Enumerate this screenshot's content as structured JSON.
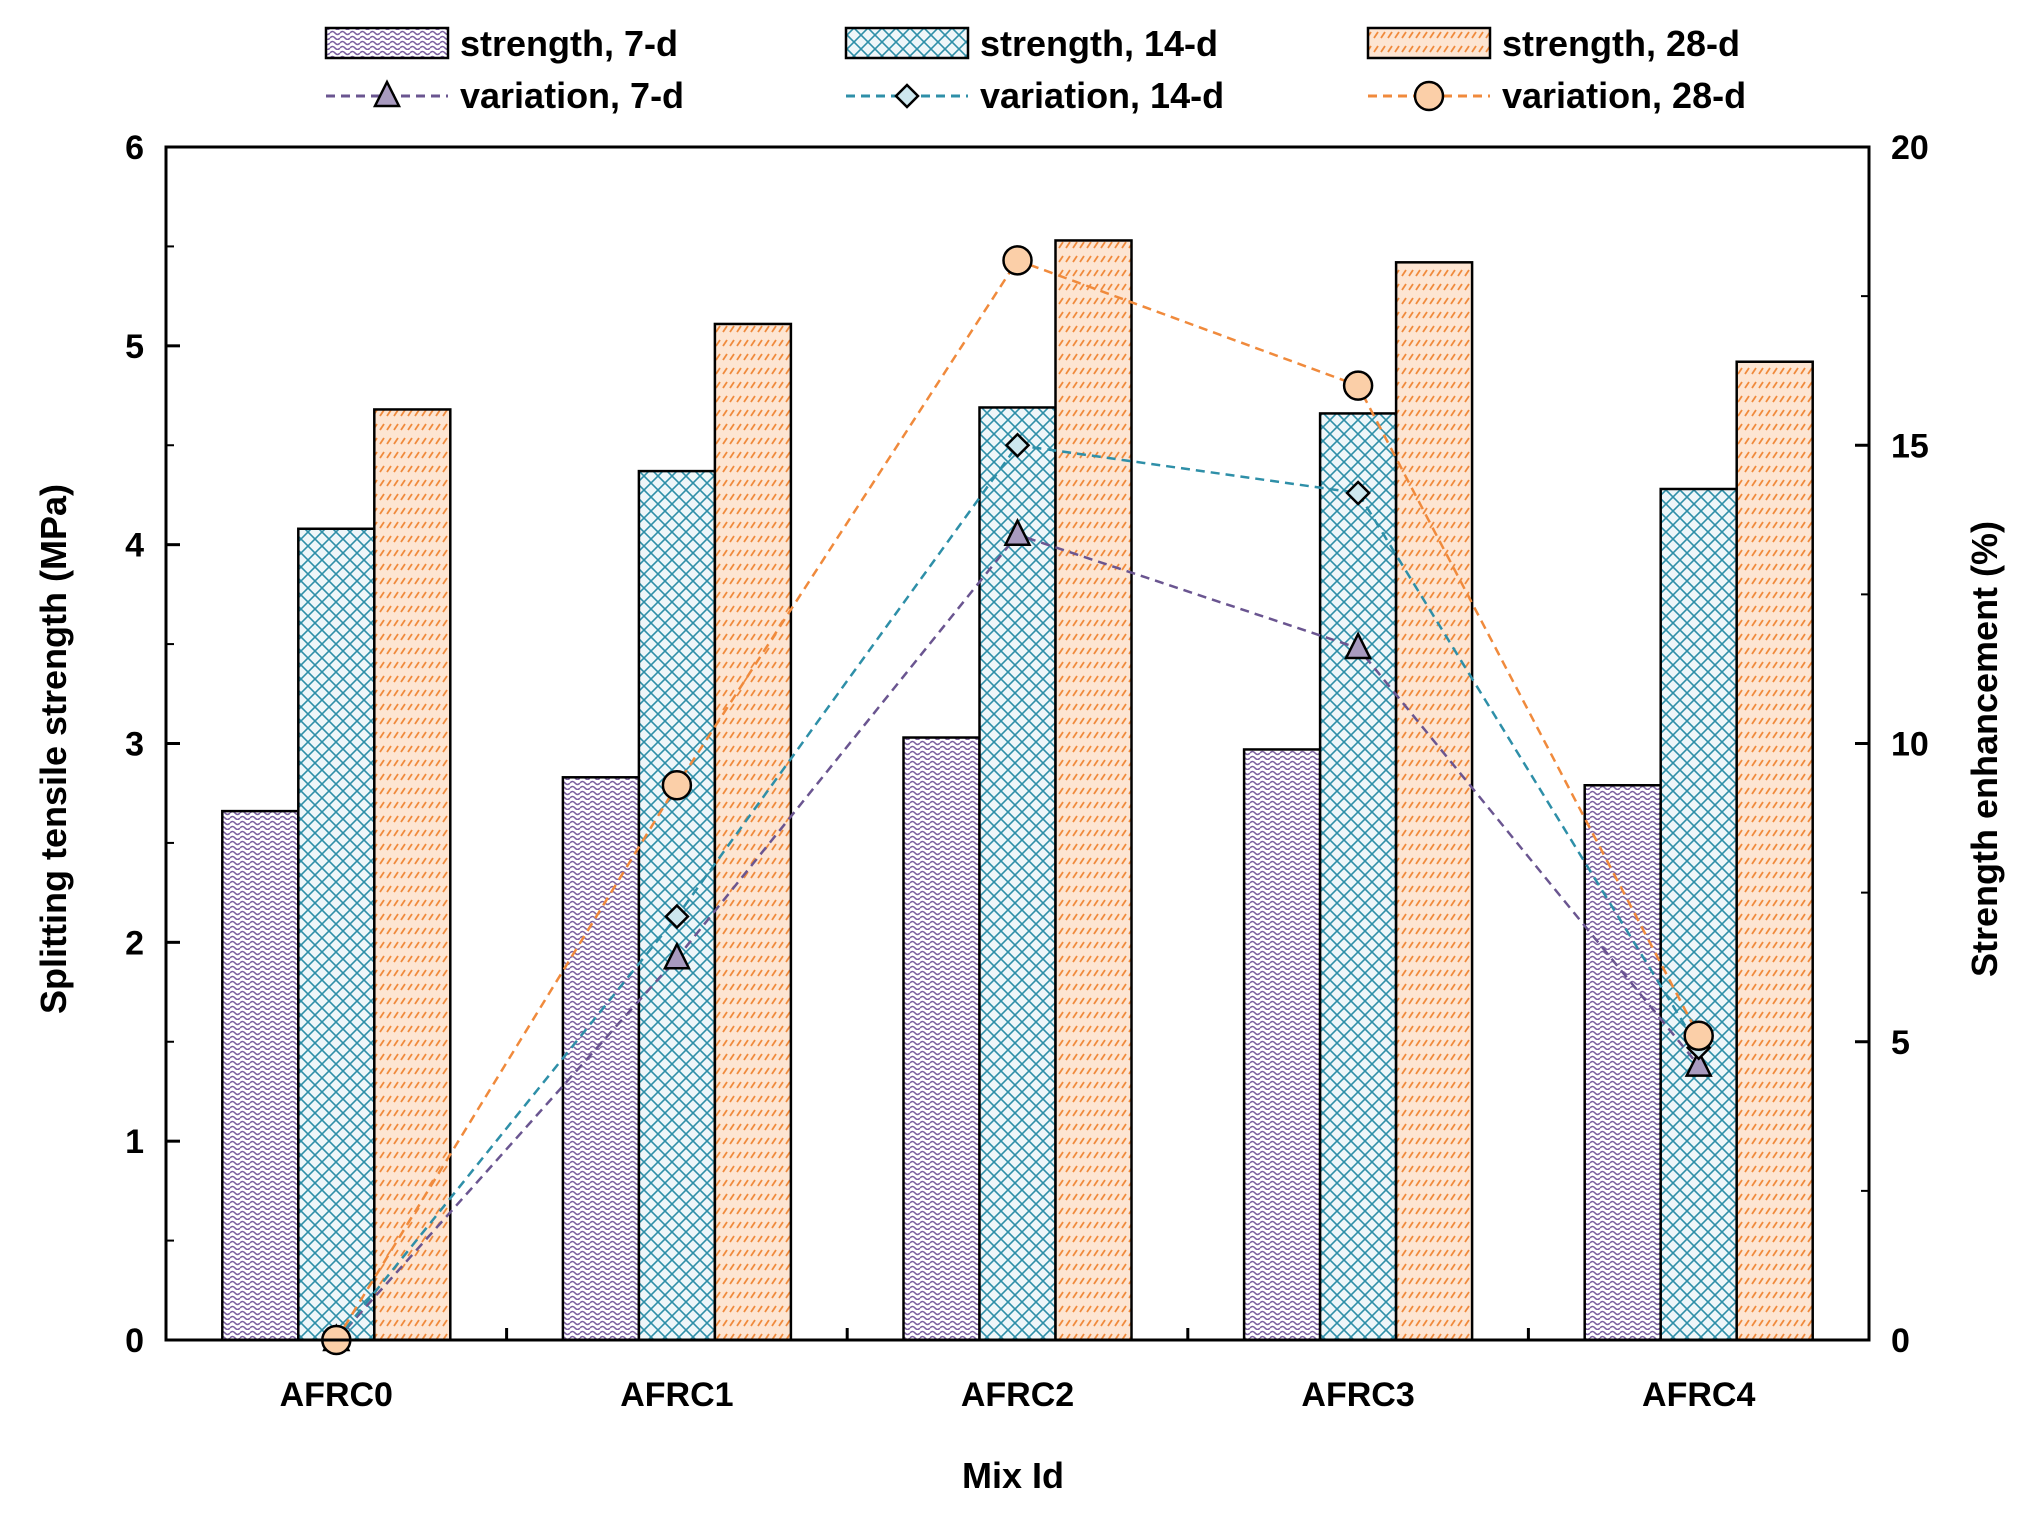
{
  "chart_data": {
    "type": "bar",
    "categories": [
      "AFRC0",
      "AFRC1",
      "AFRC2",
      "AFRC3",
      "AFRC4"
    ],
    "xlabel": "Mix Id",
    "ylabel": "Splitting tensile strength (MPa)",
    "y2label": "Strength enhancement (%)",
    "ylim": [
      0,
      6
    ],
    "y2lim": [
      0,
      20
    ],
    "yticks": [
      "0",
      "1",
      "2",
      "3",
      "4",
      "5",
      "6"
    ],
    "y2ticks": [
      "0",
      "5",
      "10",
      "15",
      "20"
    ],
    "grid": false,
    "legend_position": "top",
    "bar_series": [
      {
        "name": "strength, 7-d",
        "values": [
          2.66,
          2.83,
          3.03,
          2.97,
          2.79
        ],
        "color": "#7a5fa0",
        "fill": "#ffffff"
      },
      {
        "name": "strength, 14-d",
        "values": [
          4.08,
          4.37,
          4.69,
          4.66,
          4.28
        ],
        "color": "#2e8fa8",
        "fill": "#eef6f9"
      },
      {
        "name": "strength, 28-d",
        "values": [
          4.68,
          5.11,
          5.53,
          5.42,
          4.92
        ],
        "color": "#f08a3c",
        "fill": "#fde5d2"
      }
    ],
    "line_series": [
      {
        "name": "variation, 7-d",
        "values": [
          0,
          6.4,
          13.5,
          11.6,
          4.6
        ],
        "color": "#6a5590",
        "marker": "triangle",
        "marker_fill": "#a89abf"
      },
      {
        "name": "variation, 14-d",
        "values": [
          0,
          7.1,
          15.0,
          14.2,
          4.9
        ],
        "color": "#2e8fa8",
        "marker": "diamond",
        "marker_fill": "#cde7ee"
      },
      {
        "name": "variation, 28-d",
        "values": [
          0,
          9.3,
          18.1,
          16.0,
          5.1
        ],
        "color": "#f08a3c",
        "marker": "circle",
        "marker_fill": "#fbcfa8"
      }
    ]
  }
}
